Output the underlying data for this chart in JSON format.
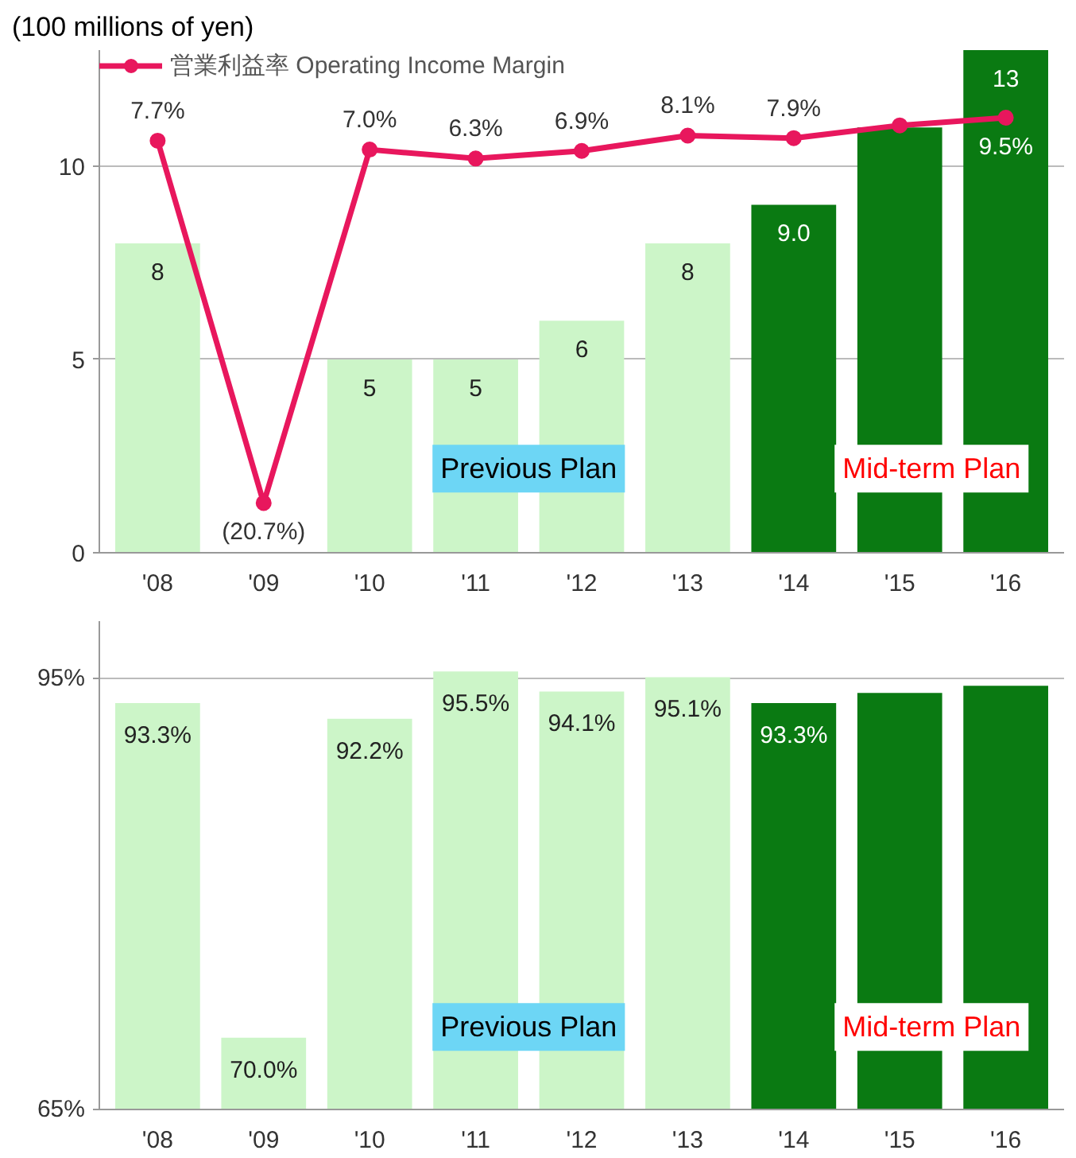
{
  "chart_data": [
    {
      "type": "bar",
      "categories": [
        "'08",
        "'09",
        "'10",
        "'11",
        "'12",
        "'13",
        "'14",
        "'15",
        "'16"
      ],
      "series": [
        {
          "type": "bar",
          "colors": [
            "#ccf5c8",
            "#ccf5c8",
            "#ccf5c8",
            "#ccf5c8",
            "#ccf5c8",
            "#ccf5c8",
            "#0a7a12",
            "#0a7a12",
            "#0a7a12"
          ],
          "values": [
            8,
            null,
            5,
            5,
            6,
            8,
            9.0,
            11,
            13
          ],
          "value_labels": [
            "8",
            null,
            "5",
            "5",
            "6",
            "8",
            "9.0",
            null,
            "13"
          ]
        },
        {
          "type": "line",
          "name": "営業利益率 Operating Income Margin",
          "color": "#e8175d",
          "axis": "y2",
          "values": [
            7.7,
            -20.7,
            7.0,
            6.3,
            6.9,
            8.1,
            7.9,
            8.9,
            9.5
          ],
          "value_labels": [
            "7.7%",
            "(20.7%)",
            "7.0%",
            "6.3%",
            "6.9%",
            "8.1%",
            "7.9%",
            null,
            "9.5%"
          ]
        }
      ],
      "ylim": [
        0,
        13
      ],
      "yticks": [
        0,
        5,
        10
      ],
      "y2lim": [
        -24.6,
        14.8
      ],
      "grid": "y",
      "legend": "top left",
      "marker": "circle",
      "annotations": [
        "(100 millions of yen)",
        "Previous Plan",
        "Mid-term Plan"
      ]
    },
    {
      "type": "bar",
      "categories": [
        "'08",
        "'09",
        "'10",
        "'11",
        "'12",
        "'13",
        "'14",
        "'15",
        "'16"
      ],
      "colors": [
        "#ccf5c8",
        "#ccf5c8",
        "#ccf5c8",
        "#ccf5c8",
        "#ccf5c8",
        "#ccf5c8",
        "#0a7a12",
        "#0a7a12",
        "#0a7a12"
      ],
      "values": [
        93.3,
        70.0,
        92.2,
        95.5,
        94.1,
        95.1,
        93.3,
        94.0,
        94.5
      ],
      "value_labels": [
        "93.3%",
        "70.0%",
        "92.2%",
        "95.5%",
        "94.1%",
        "95.1%",
        "93.3%",
        null,
        null
      ],
      "ylim": [
        65,
        99
      ],
      "yticks": [
        {
          "value": 65,
          "label": "65%"
        },
        {
          "value": 95,
          "label": "95%"
        }
      ],
      "grid": "y",
      "annotations": [
        "Previous Plan",
        "Mid-term Plan"
      ]
    }
  ]
}
